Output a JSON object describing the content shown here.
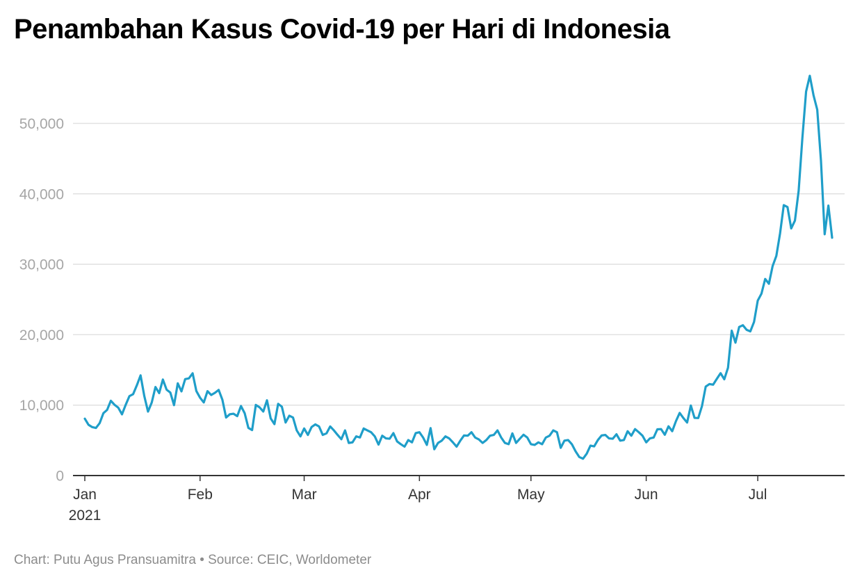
{
  "chart_data": {
    "type": "line",
    "title": "Penambahan Kasus Covid-19 per Hari di Indonesia",
    "xlabel": "",
    "ylabel": "",
    "ylim": [
      0,
      57000
    ],
    "yticks": [
      {
        "value": 0,
        "label": "0"
      },
      {
        "value": 10000,
        "label": "10,000"
      },
      {
        "value": 20000,
        "label": "20,000"
      },
      {
        "value": 30000,
        "label": "30,000"
      },
      {
        "value": 40000,
        "label": "40,000"
      },
      {
        "value": 50000,
        "label": "50,000"
      }
    ],
    "xticks": [
      {
        "date": "2021-01-01",
        "label": "Jan",
        "sublabel": "2021"
      },
      {
        "date": "2021-02-01",
        "label": "Feb"
      },
      {
        "date": "2021-03-01",
        "label": "Mar"
      },
      {
        "date": "2021-04-01",
        "label": "Apr"
      },
      {
        "date": "2021-05-01",
        "label": "May"
      },
      {
        "date": "2021-06-01",
        "label": "Jun"
      },
      {
        "date": "2021-07-01",
        "label": "Jul"
      }
    ],
    "x_start": "2021-01-01",
    "x_end": "2021-07-21",
    "grid": true,
    "line_color": "#1f9ec9",
    "grid_color": "#e1e1e1",
    "axis_color": "#333333",
    "series": [
      {
        "values": [
          8072,
          7203,
          6877,
          6753,
          7445,
          8854,
          9321,
          10617,
          10046,
          9640,
          8692,
          10047,
          11278,
          11557,
          12818,
          14224,
          11287,
          9086,
          10365,
          12568,
          11703,
          13632,
          12191,
          11788,
          9994,
          13094,
          11948,
          13695,
          13802,
          14518,
          12001,
          11049,
          10379,
          11984,
          11434,
          11749,
          12156,
          10768,
          8242,
          8700,
          8776,
          8435,
          9869,
          8844,
          6765,
          6459,
          10029,
          9687,
          9085,
          10682,
          8107,
          7300,
          10180,
          9775,
          7533,
          8493,
          8232,
          6412,
          5560,
          6680,
          5767,
          6894,
          7264,
          6971,
          5767,
          5989,
          6971,
          6412,
          5767,
          5158,
          6412,
          4627,
          4714,
          5560,
          5404,
          6680,
          6412,
          6150,
          5560,
          4396,
          5656,
          5275,
          5228,
          6023,
          4846,
          4451,
          4105,
          5041,
          4714,
          6023,
          6150,
          5393,
          4352,
          6731,
          3734,
          4627,
          4952,
          5560,
          5275,
          4714,
          4106,
          4952,
          5690,
          5656,
          6150,
          5393,
          5122,
          4627,
          5041,
          5656,
          5767,
          6412,
          5393,
          4627,
          4451,
          5983,
          4627,
          5228,
          5792,
          5405,
          4451,
          4352,
          4714,
          4451,
          5393,
          5656,
          6412,
          6150,
          3941,
          4952,
          5041,
          4451,
          3448,
          2633,
          2385,
          3106,
          4246,
          4145,
          5041,
          5690,
          5767,
          5275,
          5228,
          5863,
          4952,
          5041,
          6293,
          5656,
          6594,
          6150,
          5656,
          4714,
          5275,
          5393,
          6565,
          6594,
          5792,
          6993,
          6294,
          7725,
          8892,
          8161,
          7528,
          9944,
          8189,
          8161,
          9868,
          12624,
          12990,
          12906,
          13737,
          14536,
          13668,
          15308,
          20574,
          18872,
          21095,
          21342,
          20694,
          20467,
          21807,
          24836,
          25830,
          27913,
          27233,
          29745,
          31189,
          34379,
          38391,
          38124,
          35094,
          36197,
          40427,
          47899,
          54517,
          56757,
          54000,
          51952,
          44721,
          34257,
          38325,
          33772
        ]
      }
    ]
  },
  "footer": {
    "text": "Chart: Putu Agus Pransuamitra • Source: CEIC, Worldometer"
  }
}
